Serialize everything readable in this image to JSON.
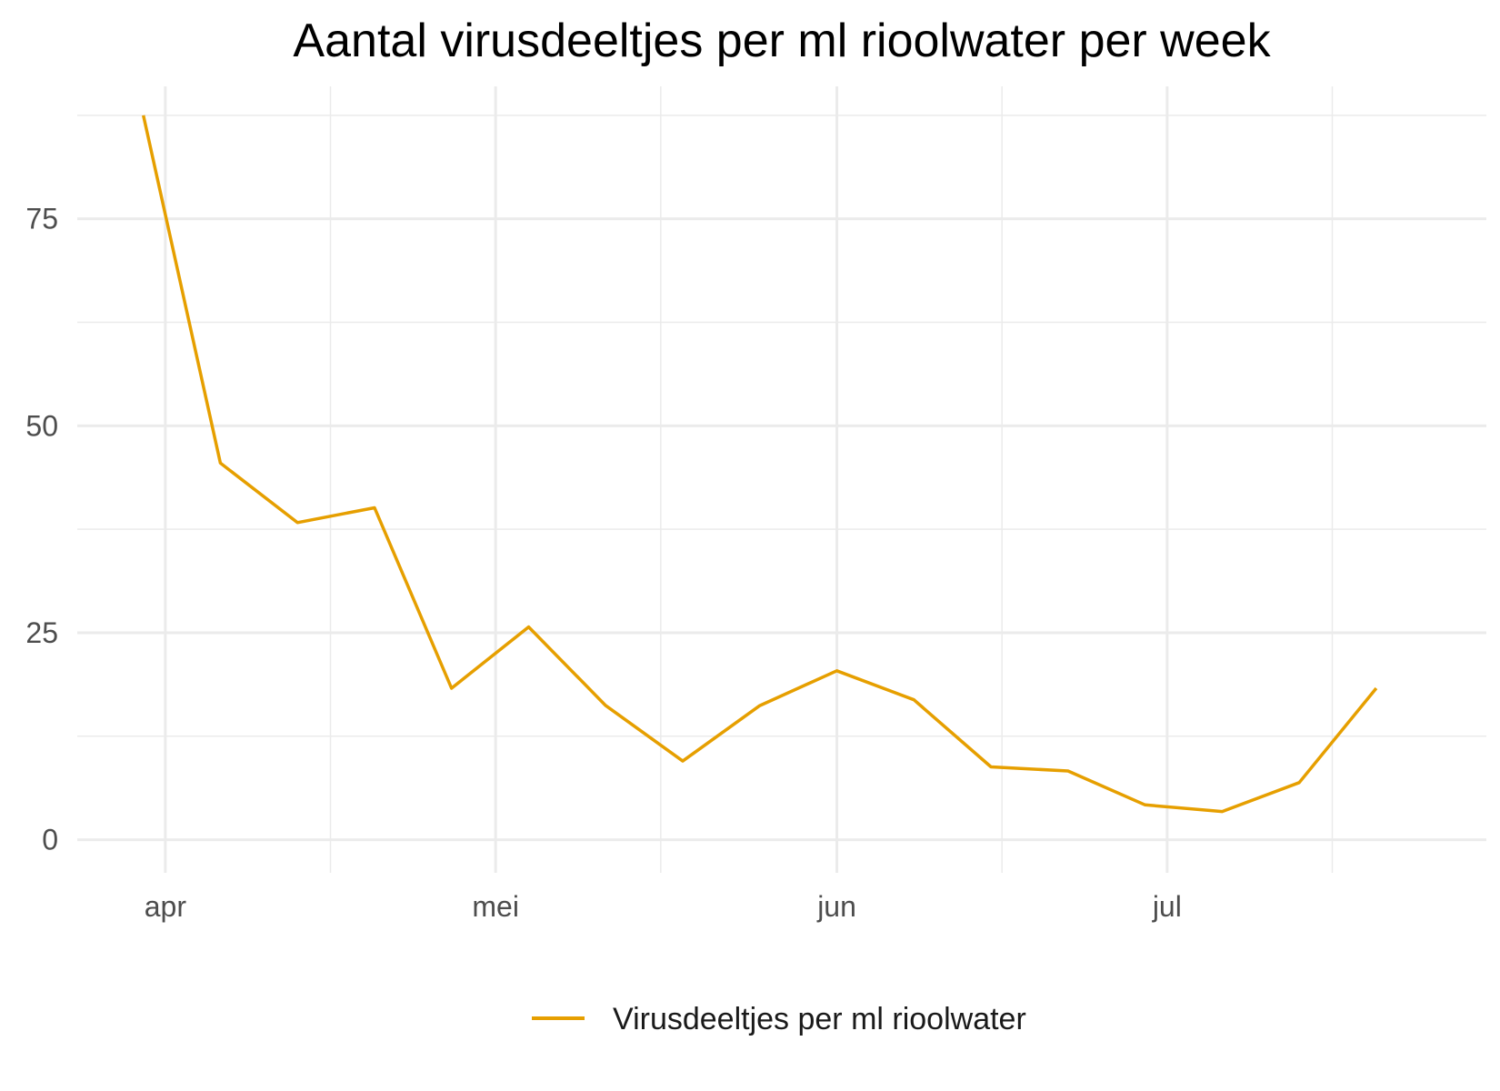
{
  "chart_data": {
    "type": "line",
    "title": "Aantal virusdeeltjes per ml rioolwater per week",
    "xlabel": "",
    "ylabel": "",
    "x_tick_labels": [
      {
        "date": "2020-04-01",
        "label": "apr"
      },
      {
        "date": "2020-05-01",
        "label": "mei"
      },
      {
        "date": "2020-06-01",
        "label": "jun"
      },
      {
        "date": "2020-07-01",
        "label": "jul"
      }
    ],
    "x_minor_dates": [
      "2020-04-16",
      "2020-05-16",
      "2020-06-16",
      "2020-07-16"
    ],
    "xlim": [
      "2020-03-24",
      "2020-07-30"
    ],
    "y_ticks": [
      0,
      25,
      50,
      75
    ],
    "y_minor_ticks": [
      12.5,
      37.5,
      62.5,
      87.5
    ],
    "ylim": [
      -4,
      91
    ],
    "grid": true,
    "legend_position": "bottom",
    "series": [
      {
        "name": "Virusdeeltjes per ml rioolwater",
        "color": "#E69F00",
        "points": [
          {
            "x": "2020-03-30",
            "y": 87.5
          },
          {
            "x": "2020-04-06",
            "y": 45.5
          },
          {
            "x": "2020-04-13",
            "y": 38.3
          },
          {
            "x": "2020-04-20",
            "y": 40.1
          },
          {
            "x": "2020-04-27",
            "y": 18.3
          },
          {
            "x": "2020-05-04",
            "y": 25.7
          },
          {
            "x": "2020-05-11",
            "y": 16.2
          },
          {
            "x": "2020-05-18",
            "y": 9.5
          },
          {
            "x": "2020-05-25",
            "y": 16.2
          },
          {
            "x": "2020-06-01",
            "y": 20.4
          },
          {
            "x": "2020-06-08",
            "y": 16.9
          },
          {
            "x": "2020-06-15",
            "y": 8.8
          },
          {
            "x": "2020-06-22",
            "y": 8.3
          },
          {
            "x": "2020-06-29",
            "y": 4.2
          },
          {
            "x": "2020-07-06",
            "y": 3.4
          },
          {
            "x": "2020-07-13",
            "y": 6.9
          },
          {
            "x": "2020-07-20",
            "y": 18.3
          }
        ]
      }
    ]
  }
}
